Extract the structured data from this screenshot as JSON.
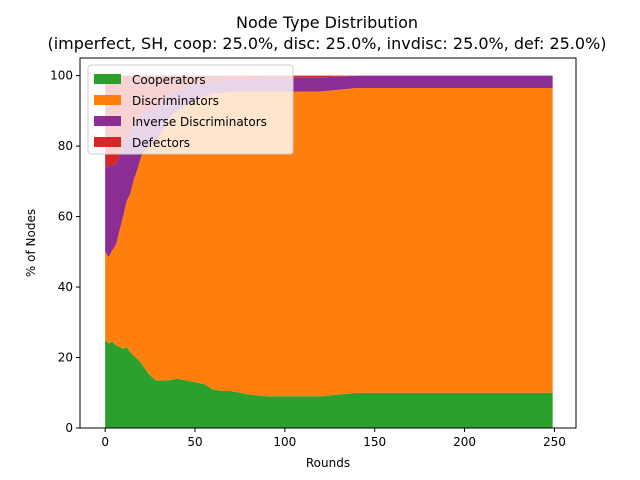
{
  "chart_data": {
    "type": "area",
    "stacked": true,
    "title": "Node Type Distribution",
    "subtitle": "(imperfect, SH, coop: 25.0%, disc: 25.0%, invdisc: 25.0%, def: 25.0%)",
    "xlabel": "Rounds",
    "ylabel": "% of Nodes",
    "xlim": [
      -14,
      262
    ],
    "ylim": [
      0,
      105
    ],
    "xticks": [
      "0",
      "50",
      "100",
      "150",
      "200",
      "250"
    ],
    "yticks": [
      "0",
      "20",
      "40",
      "60",
      "80",
      "100"
    ],
    "grid": false,
    "legend_position": "top-left",
    "x": [
      0,
      2,
      4,
      6,
      8,
      10,
      12,
      14,
      16,
      18,
      20,
      22,
      24,
      26,
      28,
      30,
      35,
      40,
      45,
      50,
      55,
      60,
      65,
      70,
      75,
      80,
      90,
      100,
      110,
      120,
      130,
      140,
      150,
      200,
      249
    ],
    "series": [
      {
        "name": "Cooperators",
        "color": "#2ca02c",
        "values": [
          25,
          24,
          24.5,
          23.5,
          23,
          22.5,
          23,
          21.5,
          20.5,
          19.5,
          18.5,
          17,
          15.5,
          14.5,
          13.5,
          13.5,
          13.5,
          14,
          13.5,
          13,
          12.5,
          11,
          10.5,
          10.5,
          10,
          9.5,
          9,
          9,
          9,
          9,
          9.5,
          10,
          10,
          10,
          10
        ]
      },
      {
        "name": "Discriminators",
        "color": "#ff7f0e",
        "values": [
          25,
          24.5,
          26,
          28.5,
          33,
          37.5,
          41.5,
          45,
          50,
          54,
          58.5,
          62,
          64,
          66,
          68,
          69,
          74,
          76,
          78,
          80,
          81.5,
          84,
          84.5,
          85,
          85.5,
          86,
          86.5,
          86.5,
          86.5,
          86.5,
          86.5,
          86.5,
          86.5,
          86.5,
          86.5
        ]
      },
      {
        "name": "Inverse Discriminators",
        "color": "#8c2d93",
        "values": [
          24,
          26,
          24,
          23,
          21,
          20,
          18,
          17,
          15.5,
          14,
          12,
          11,
          10.5,
          10,
          9.5,
          9,
          7,
          5.5,
          5,
          4.5,
          4,
          3.5,
          3.5,
          3.5,
          3.5,
          3.5,
          4,
          4,
          4,
          4,
          3.7,
          3.5,
          3.5,
          3.5,
          3.5
        ]
      },
      {
        "name": "Defectors",
        "color": "#d62728",
        "values": [
          26,
          25.5,
          25.5,
          25,
          23,
          20,
          17.5,
          16.5,
          14,
          12.5,
          11,
          10,
          10,
          9.5,
          9,
          8.5,
          5.5,
          4.5,
          3.5,
          2.5,
          2,
          1.5,
          1.5,
          1,
          1,
          1,
          0.5,
          0.5,
          0.5,
          0.5,
          0.3,
          0,
          0,
          0,
          0
        ]
      }
    ]
  }
}
